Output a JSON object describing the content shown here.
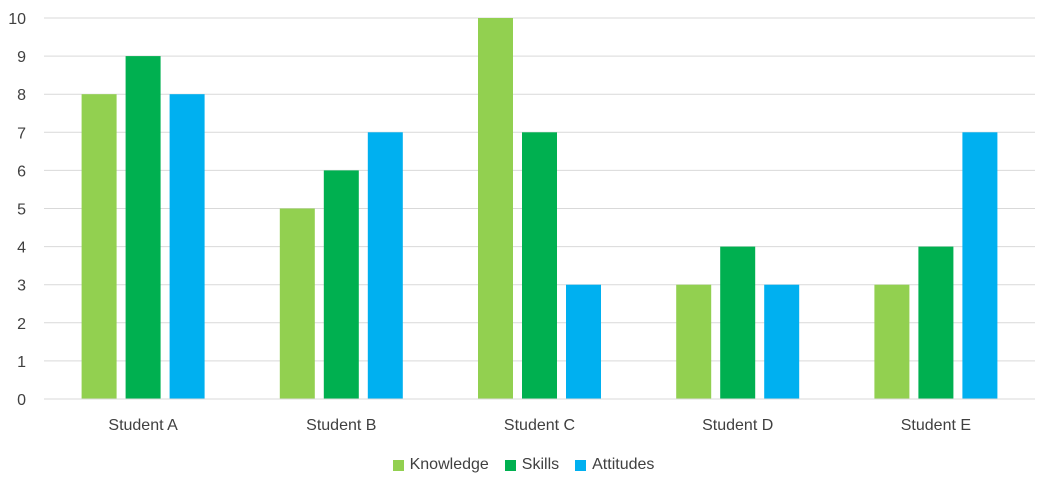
{
  "chart_data": {
    "type": "bar",
    "categories": [
      "Student A",
      "Student B",
      "Student C",
      "Student D",
      "Student E"
    ],
    "series": [
      {
        "name": "Knowledge",
        "values": [
          8,
          5,
          10,
          3,
          3
        ],
        "color": "#92d050"
      },
      {
        "name": "Skills",
        "values": [
          9,
          6,
          7,
          4,
          4
        ],
        "color": "#00b050"
      },
      {
        "name": "Attitudes",
        "values": [
          8,
          7,
          3,
          3,
          7
        ],
        "color": "#00b0f0"
      }
    ],
    "ylim": [
      0,
      10
    ],
    "yticks": [
      0,
      1,
      2,
      3,
      4,
      5,
      6,
      7,
      8,
      9,
      10
    ],
    "grid": true,
    "legend_position": "bottom"
  }
}
